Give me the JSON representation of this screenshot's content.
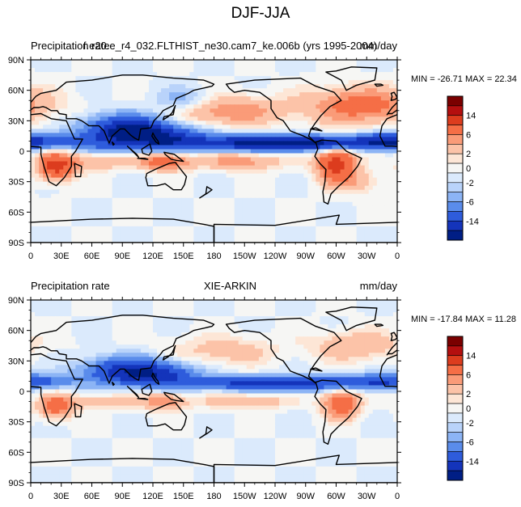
{
  "figure": {
    "title": "DJF-JJA"
  },
  "colorbar_levels": [
    "14",
    "6",
    "2",
    "0",
    "-2",
    "-6",
    "-14"
  ],
  "colors": {
    "levels": [
      "#7a0000",
      "#b40f0f",
      "#dc3c1e",
      "#f56e46",
      "#fa9b78",
      "#fcc3a8",
      "#fde6d6",
      "#f6f6f4",
      "#dbeafc",
      "#b9d3fa",
      "#8cb4f5",
      "#5a8ceb",
      "#2e5cdc",
      "#1434bb",
      "#001e85"
    ],
    "land_outline": "#000000",
    "background": "#ffffff"
  },
  "x_ticks": [
    "0",
    "30E",
    "60E",
    "90E",
    "120E",
    "150E",
    "180",
    "150W",
    "120W",
    "90W",
    "60W",
    "30W",
    "0"
  ],
  "y_ticks": [
    "90N",
    "60N",
    "30N",
    "0",
    "30S",
    "60S",
    "90S"
  ],
  "panels": [
    {
      "left_string": "Precipitation rate",
      "center_string": "f.e20.e_r4_032.FLTHIST_ne30.cam7_ke.006b (yrs 1995-2004)",
      "right_string": "mm/day",
      "minmax": "MIN = -26.71 MAX =  22.34"
    },
    {
      "left_string": "Precipitation rate",
      "center_string": "XIE-ARKIN",
      "right_string": "mm/day",
      "minmax": "MIN = -17.84 MAX =  11.28"
    }
  ],
  "map_data": {
    "type": "contour-map",
    "projection": "cylindrical-equidistant",
    "lon_range": [
      0,
      360
    ],
    "lat_range": [
      -90,
      90
    ],
    "units": "mm/day",
    "levels": [
      -14,
      -10,
      -6,
      -4,
      -2,
      -1,
      0,
      1,
      2,
      4,
      6,
      10,
      14
    ],
    "panels": [
      {
        "name": "f.e20.e_r4_032.FLTHIST_ne30.cam7_ke.006b (yrs 1995-2004)",
        "min": -26.71,
        "max": 22.34,
        "features": [
          {
            "lon": 270,
            "lat": 8,
            "sx": 55,
            "sy": 5,
            "amp": -14
          },
          {
            "lon": 215,
            "lat": 8,
            "sx": 45,
            "sy": 5,
            "amp": -8
          },
          {
            "lon": 95,
            "lat": 20,
            "sx": 28,
            "sy": 10,
            "amp": -16
          },
          {
            "lon": 135,
            "lat": 12,
            "sx": 28,
            "sy": 8,
            "amp": -10
          },
          {
            "lon": 345,
            "lat": 10,
            "sx": 18,
            "sy": 5,
            "amp": -8
          },
          {
            "lon": 15,
            "lat": 10,
            "sx": 25,
            "sy": 5,
            "amp": -6
          },
          {
            "lon": 152,
            "lat": 48,
            "sx": 22,
            "sy": 9,
            "amp": -4
          },
          {
            "lon": 60,
            "lat": 8,
            "sx": 25,
            "sy": 6,
            "amp": -3
          },
          {
            "lon": 190,
            "lat": 40,
            "sx": 40,
            "sy": 10,
            "amp": 6
          },
          {
            "lon": 325,
            "lat": 45,
            "sx": 35,
            "sy": 12,
            "amp": 8
          },
          {
            "lon": 25,
            "lat": -15,
            "sx": 12,
            "sy": 9,
            "amp": 12
          },
          {
            "lon": 300,
            "lat": -12,
            "sx": 13,
            "sy": 12,
            "amp": 12
          },
          {
            "lon": 130,
            "lat": -10,
            "sx": 18,
            "sy": 6,
            "amp": 8
          },
          {
            "lon": 205,
            "lat": -10,
            "sx": 30,
            "sy": 6,
            "amp": 5
          },
          {
            "lon": 65,
            "lat": -10,
            "sx": 22,
            "sy": 6,
            "amp": 4
          },
          {
            "lon": 320,
            "lat": -30,
            "sx": 18,
            "sy": 8,
            "amp": 3
          }
        ]
      },
      {
        "name": "XIE-ARKIN",
        "min": -17.84,
        "max": 11.28,
        "features": [
          {
            "lon": 260,
            "lat": 8,
            "sx": 55,
            "sy": 5,
            "amp": -10
          },
          {
            "lon": 200,
            "lat": 8,
            "sx": 40,
            "sy": 4,
            "amp": -5
          },
          {
            "lon": 95,
            "lat": 20,
            "sx": 28,
            "sy": 9,
            "amp": -12
          },
          {
            "lon": 130,
            "lat": 15,
            "sx": 25,
            "sy": 8,
            "amp": -8
          },
          {
            "lon": 340,
            "lat": 10,
            "sx": 20,
            "sy": 5,
            "amp": -6
          },
          {
            "lon": 15,
            "lat": 10,
            "sx": 25,
            "sy": 5,
            "amp": -5
          },
          {
            "lon": 190,
            "lat": 40,
            "sx": 35,
            "sy": 10,
            "amp": 3
          },
          {
            "lon": 320,
            "lat": 45,
            "sx": 30,
            "sy": 10,
            "amp": 4
          },
          {
            "lon": 25,
            "lat": -15,
            "sx": 12,
            "sy": 8,
            "amp": 8
          },
          {
            "lon": 305,
            "lat": -12,
            "sx": 12,
            "sy": 10,
            "amp": 9
          },
          {
            "lon": 130,
            "lat": -10,
            "sx": 15,
            "sy": 6,
            "amp": 6
          },
          {
            "lon": 210,
            "lat": -10,
            "sx": 30,
            "sy": 5,
            "amp": 4
          },
          {
            "lon": 70,
            "lat": -10,
            "sx": 25,
            "sy": 5,
            "amp": 3
          }
        ]
      }
    ],
    "land": [
      [
        [
          -168,
          66
        ],
        [
          -140,
          70
        ],
        [
          -95,
          72
        ],
        [
          -80,
          64
        ],
        [
          -62,
          58
        ],
        [
          -55,
          50
        ],
        [
          -66,
          44
        ],
        [
          -75,
          35
        ],
        [
          -81,
          27
        ],
        [
          -85,
          21
        ],
        [
          -87,
          15
        ],
        [
          -80,
          8
        ],
        [
          -84,
          11
        ],
        [
          -92,
          15
        ],
        [
          -105,
          20
        ],
        [
          -112,
          30
        ],
        [
          -118,
          33
        ],
        [
          -124,
          42
        ],
        [
          -124,
          50
        ],
        [
          -135,
          58
        ],
        [
          -150,
          60
        ],
        [
          -160,
          58
        ],
        [
          -165,
          62
        ]
      ],
      [
        [
          -80,
          9
        ],
        [
          -74,
          11
        ],
        [
          -60,
          10
        ],
        [
          -50,
          0
        ],
        [
          -35,
          -7
        ],
        [
          -39,
          -15
        ],
        [
          -48,
          -26
        ],
        [
          -58,
          -35
        ],
        [
          -65,
          -42
        ],
        [
          -68,
          -52
        ],
        [
          -72,
          -50
        ],
        [
          -73,
          -40
        ],
        [
          -71,
          -30
        ],
        [
          -70,
          -18
        ],
        [
          -76,
          -12
        ],
        [
          -81,
          -5
        ],
        [
          -78,
          2
        ]
      ],
      [
        [
          -10,
          36
        ],
        [
          -5,
          43
        ],
        [
          0,
          48
        ],
        [
          5,
          54
        ],
        [
          10,
          57
        ],
        [
          25,
          60
        ],
        [
          35,
          68
        ],
        [
          60,
          70
        ],
        [
          90,
          75
        ],
        [
          110,
          75
        ],
        [
          140,
          72
        ],
        [
          170,
          70
        ],
        [
          180,
          66
        ],
        [
          178,
          64
        ],
        [
          160,
          60
        ],
        [
          155,
          57
        ],
        [
          143,
          52
        ],
        [
          140,
          45
        ],
        [
          130,
          40
        ],
        [
          127,
          36
        ],
        [
          121,
          30
        ],
        [
          118,
          23
        ],
        [
          108,
          22
        ],
        [
          106,
          11
        ],
        [
          102,
          13
        ],
        [
          98,
          16
        ],
        [
          92,
          22
        ],
        [
          88,
          22
        ],
        [
          80,
          15
        ],
        [
          77,
          8
        ],
        [
          72,
          20
        ],
        [
          67,
          25
        ],
        [
          57,
          25
        ],
        [
          56,
          26
        ],
        [
          50,
          30
        ],
        [
          45,
          32
        ],
        [
          35,
          32
        ],
        [
          35,
          36
        ],
        [
          28,
          37
        ],
        [
          26,
          40
        ],
        [
          20,
          40
        ],
        [
          15,
          43
        ],
        [
          12,
          44
        ],
        [
          8,
          43
        ],
        [
          3,
          43
        ],
        [
          -5,
          37
        ],
        [
          -9,
          37
        ]
      ],
      [
        [
          -17,
          15
        ],
        [
          -12,
          5
        ],
        [
          -5,
          5
        ],
        [
          10,
          4
        ],
        [
          10,
          -3
        ],
        [
          13,
          -15
        ],
        [
          18,
          -30
        ],
        [
          25,
          -34
        ],
        [
          33,
          -26
        ],
        [
          40,
          -15
        ],
        [
          40,
          -5
        ],
        [
          44,
          0
        ],
        [
          51,
          12
        ],
        [
          43,
          12
        ],
        [
          35,
          30
        ],
        [
          20,
          32
        ],
        [
          10,
          37
        ],
        [
          0,
          36
        ],
        [
          -10,
          32
        ],
        [
          -15,
          25
        ]
      ],
      [
        [
          114,
          -22
        ],
        [
          122,
          -18
        ],
        [
          129,
          -15
        ],
        [
          136,
          -12
        ],
        [
          142,
          -11
        ],
        [
          145,
          -15
        ],
        [
          153,
          -25
        ],
        [
          151,
          -33
        ],
        [
          148,
          -38
        ],
        [
          140,
          -38
        ],
        [
          132,
          -32
        ],
        [
          124,
          -34
        ],
        [
          115,
          -34
        ],
        [
          113,
          -26
        ]
      ],
      [
        [
          -180,
          -72
        ],
        [
          -120,
          -73
        ],
        [
          -70,
          -65
        ],
        [
          -57,
          -63
        ],
        [
          -60,
          -72
        ],
        [
          0,
          -70
        ],
        [
          60,
          -67
        ],
        [
          100,
          -66
        ],
        [
          140,
          -67
        ],
        [
          170,
          -72
        ],
        [
          180,
          -74
        ],
        [
          180,
          -90
        ],
        [
          -180,
          -90
        ]
      ],
      [
        [
          -50,
          60
        ],
        [
          -40,
          65
        ],
        [
          -22,
          70
        ],
        [
          -20,
          82
        ],
        [
          -45,
          83
        ],
        [
          -60,
          79
        ],
        [
          -70,
          78
        ],
        [
          -55,
          70
        ]
      ],
      [
        [
          -6,
          50
        ],
        [
          -2,
          51
        ],
        [
          0,
          53
        ],
        [
          -3,
          58
        ],
        [
          -6,
          57
        ],
        [
          -5,
          54
        ]
      ],
      [
        [
          130,
          31
        ],
        [
          131,
          34
        ],
        [
          140,
          36
        ],
        [
          141,
          41
        ],
        [
          142,
          45
        ],
        [
          139,
          38
        ],
        [
          135,
          34
        ]
      ],
      [
        [
          95,
          5
        ],
        [
          106,
          -6
        ],
        [
          104,
          -3
        ],
        [
          97,
          3
        ]
      ],
      [
        [
          105,
          -7
        ],
        [
          115,
          -8
        ],
        [
          112,
          -7
        ]
      ],
      [
        [
          109,
          2
        ],
        [
          117,
          7
        ],
        [
          119,
          0
        ],
        [
          116,
          -4
        ],
        [
          110,
          -2
        ]
      ],
      [
        [
          131,
          -1
        ],
        [
          141,
          -3
        ],
        [
          150,
          -10
        ],
        [
          143,
          -9
        ],
        [
          138,
          -8
        ],
        [
          132,
          -3
        ]
      ],
      [
        [
          43,
          -12
        ],
        [
          50,
          -15
        ],
        [
          49,
          -25
        ],
        [
          44,
          -25
        ]
      ],
      [
        [
          166,
          -46
        ],
        [
          174,
          -41
        ],
        [
          178,
          -38
        ],
        [
          173,
          -35
        ],
        [
          172,
          -42
        ]
      ],
      [
        [
          120,
          18
        ],
        [
          122,
          14
        ],
        [
          125,
          10
        ],
        [
          126,
          7
        ],
        [
          123,
          9
        ],
        [
          119,
          15
        ]
      ],
      [
        [
          -20,
          64
        ],
        [
          -14,
          65
        ],
        [
          -16,
          66
        ],
        [
          -22,
          66
        ]
      ],
      [
        [
          -85,
          22
        ],
        [
          -74,
          20
        ],
        [
          -80,
          23
        ]
      ],
      [
        [
          80,
          9
        ],
        [
          82,
          7
        ],
        [
          81,
          6
        ]
      ]
    ]
  }
}
